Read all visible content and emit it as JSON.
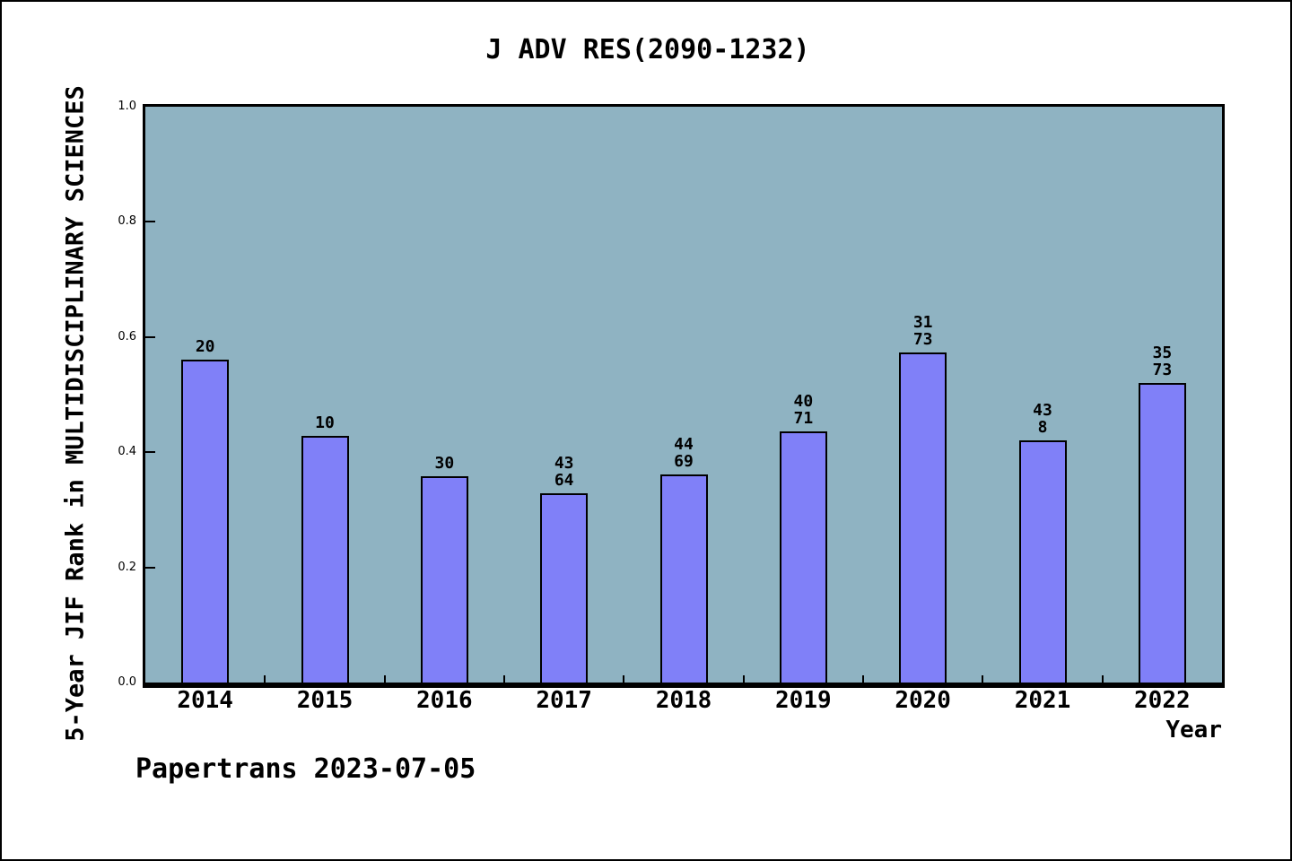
{
  "figure": {
    "title": "J ADV RES(2090-1232)",
    "watermark": "Papertrans 2023-07-05"
  },
  "chart_data": {
    "type": "bar",
    "title": "J ADV RES(2090-1232)",
    "xlabel": "Year",
    "ylabel": "5-Year JIF Rank in MULTIDISCIPLINARY SCIENCES",
    "categories": [
      "2014",
      "2015",
      "2016",
      "2017",
      "2018",
      "2019",
      "2020",
      "2021",
      "2022"
    ],
    "values": [
      0.56,
      0.428,
      0.359,
      0.328,
      0.361,
      0.436,
      0.574,
      0.42,
      0.52
    ],
    "bar_labels": [
      [
        "20"
      ],
      [
        "10"
      ],
      [
        "30"
      ],
      [
        "43",
        "64"
      ],
      [
        "44",
        "69"
      ],
      [
        "40",
        "71"
      ],
      [
        "31",
        "73"
      ],
      [
        "43",
        "8"
      ],
      [
        "35",
        "73"
      ]
    ],
    "ytick_labels": [
      "1.0",
      "0.8",
      "0.6",
      "0.4",
      "0.2",
      "0.0"
    ],
    "ylim": [
      0.0,
      1.0
    ],
    "grid": false,
    "legend_position": "none",
    "annotation": "Papertrans 2023-07-05",
    "colors": {
      "bar_fill": "#8080f8",
      "bar_edge": "#000000",
      "plot_background": "#8fb3c2",
      "figure_background": "#ffffff",
      "text": "#000000"
    }
  }
}
